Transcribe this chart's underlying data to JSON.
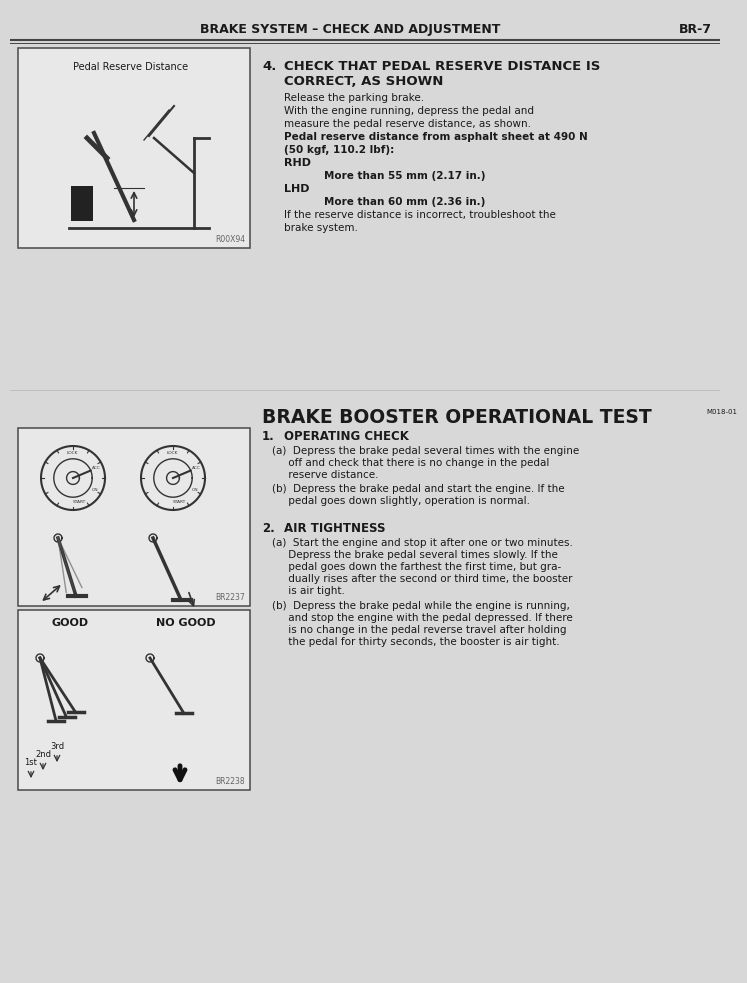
{
  "page_bg": "#d8d8d8",
  "header_text": "BRAKE SYSTEM – CHECK AND ADJUSTMENT",
  "header_right": "BR-7",
  "section4_number": "4.",
  "section4_title_line1": "CHECK THAT PEDAL RESERVE DISTANCE IS",
  "section4_title_line2": "CORRECT, AS SHOWN",
  "booster_title": "BRAKE BOOSTER OPERATIONAL TEST",
  "booster_title_ref": "M018-01",
  "section1_number": "1.",
  "section1_title": "OPERATING CHECK",
  "section1_a_lines": [
    "(a)  Depress the brake pedal several times with the engine",
    "     off and check that there is no change in the pedal",
    "     reserve distance."
  ],
  "section1_b_lines": [
    "(b)  Depress the brake pedal and start the engine. If the",
    "     pedal goes down slightly, operation is normal."
  ],
  "section2_number": "2.",
  "section2_title": "AIR TIGHTNESS",
  "section2_a_lines": [
    "(a)  Start the engine and stop it after one or two minutes.",
    "     Depress the brake pedal several times slowly. If the",
    "     pedal goes down the farthest the first time, but gra-",
    "     dually rises after the second or third time, the booster",
    "     is air tight."
  ],
  "section2_b_lines": [
    "(b)  Depress the brake pedal while the engine is running,",
    "     and stop the engine with the pedal depressed. If there",
    "     is no change in the pedal reverse travel after holding",
    "     the pedal for thirty seconds, the booster is air tight."
  ],
  "img1_label": "Pedal Reserve Distance",
  "img1_ref": "R00X94",
  "img2_ref": "BR2237",
  "img3_label_good": "GOOD",
  "img3_label_nogood": "NO GOOD",
  "img3_ref": "BR2238",
  "text_color": "#1a1a1a",
  "bg_color": "#d8d8d8",
  "box_bg": "#e8e8e8"
}
